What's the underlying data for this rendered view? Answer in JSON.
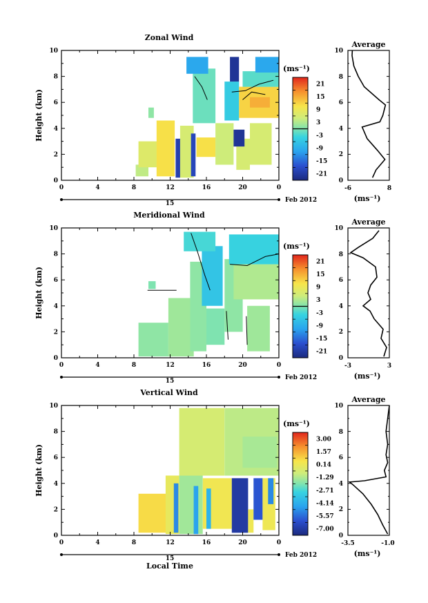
{
  "figure": {
    "date_label": "Feb 2012",
    "day_label": "15",
    "x_axis_title": "Local Time",
    "x_ticks": [
      "0",
      "4",
      "8",
      "12",
      "16",
      "20",
      "0"
    ],
    "y_ticks": [
      "0",
      "2",
      "4",
      "6",
      "8",
      "10"
    ],
    "y_axis_title": "Height (km)",
    "unit_label": "(ms⁻¹)",
    "avg_title": "Average"
  },
  "chart_data": [
    {
      "type": "heatmap",
      "title": "Zonal Wind",
      "xlabel": "",
      "ylabel": "Height (km)",
      "xlim": [
        0,
        24
      ],
      "ylim": [
        0,
        10
      ],
      "colorbar": {
        "labels": [
          "21",
          "15",
          "9",
          "3",
          "-3",
          "-9",
          "-15",
          "-21"
        ],
        "range": [
          -24,
          24
        ]
      },
      "regions": [
        {
          "x": [
            8.2,
            9.6
          ],
          "y": [
            0.3,
            1.2
          ],
          "v": 4
        },
        {
          "x": [
            8.5,
            11.5
          ],
          "y": [
            1.0,
            3.0
          ],
          "v": 7
        },
        {
          "x": [
            9.6,
            10.2
          ],
          "y": [
            4.8,
            5.6
          ],
          "v": 1
        },
        {
          "x": [
            10.5,
            12.5
          ],
          "y": [
            0.3,
            4.6
          ],
          "v": 11
        },
        {
          "x": [
            12.6,
            13.1
          ],
          "y": [
            0.2,
            3.2
          ],
          "v": -20
        },
        {
          "x": [
            13.1,
            14.6
          ],
          "y": [
            0.2,
            4.2
          ],
          "v": 6
        },
        {
          "x": [
            14.3,
            14.8
          ],
          "y": [
            0.3,
            3.6
          ],
          "v": -19
        },
        {
          "x": [
            14.9,
            17.0
          ],
          "y": [
            1.8,
            3.3
          ],
          "v": 11
        },
        {
          "x": [
            17.0,
            19.0
          ],
          "y": [
            1.2,
            4.4
          ],
          "v": 5
        },
        {
          "x": [
            19.3,
            20.8
          ],
          "y": [
            0.8,
            3.2
          ],
          "v": 6
        },
        {
          "x": [
            19.0,
            20.2
          ],
          "y": [
            2.6,
            3.9
          ],
          "v": -22
        },
        {
          "x": [
            20.8,
            23.2
          ],
          "y": [
            1.2,
            4.4
          ],
          "v": 6
        },
        {
          "x": [
            14.5,
            17.0
          ],
          "y": [
            4.4,
            8.6
          ],
          "v": -1
        },
        {
          "x": [
            13.8,
            16.2
          ],
          "y": [
            8.2,
            9.5
          ],
          "v": -10
        },
        {
          "x": [
            18.0,
            19.6
          ],
          "y": [
            4.6,
            7.6
          ],
          "v": -5
        },
        {
          "x": [
            19.6,
            24.0
          ],
          "y": [
            4.8,
            7.2
          ],
          "v": 12
        },
        {
          "x": [
            20.8,
            23.0
          ],
          "y": [
            5.6,
            6.4
          ],
          "v": 15
        },
        {
          "x": [
            18.6,
            19.6
          ],
          "y": [
            7.6,
            9.5
          ],
          "v": -22
        },
        {
          "x": [
            20.0,
            24.0
          ],
          "y": [
            7.2,
            8.4
          ],
          "v": -2
        },
        {
          "x": [
            21.4,
            24.0
          ],
          "y": [
            8.3,
            9.5
          ],
          "v": -10
        }
      ],
      "contours": [
        [
          [
            14.7,
            8.0
          ],
          [
            15.5,
            7.2
          ],
          [
            16.1,
            6.2
          ]
        ],
        [
          [
            18.8,
            6.8
          ],
          [
            20.3,
            6.9
          ],
          [
            21.8,
            7.4
          ],
          [
            23.4,
            7.7
          ]
        ],
        [
          [
            20.0,
            6.2
          ],
          [
            21.0,
            6.8
          ],
          [
            22.5,
            6.6
          ]
        ]
      ],
      "average_profile": {
        "xlim": [
          -6,
          8
        ],
        "x_ticks": [
          "-6",
          "8"
        ],
        "points": [
          [
            2.3,
            0.2
          ],
          [
            3.5,
            0.8
          ],
          [
            6.5,
            1.6
          ],
          [
            4.0,
            2.3
          ],
          [
            0.5,
            3.2
          ],
          [
            -1.2,
            4.1
          ],
          [
            4.8,
            4.5
          ],
          [
            5.8,
            5.0
          ],
          [
            6.7,
            5.8
          ],
          [
            4.5,
            6.2
          ],
          [
            -0.5,
            7.2
          ],
          [
            -2.5,
            8.0
          ],
          [
            -4.0,
            8.8
          ],
          [
            -4.6,
            9.6
          ],
          [
            -4.5,
            10.0
          ]
        ]
      }
    },
    {
      "type": "heatmap",
      "title": "Meridional Wind",
      "xlabel": "",
      "ylabel": "Height (km)",
      "xlim": [
        0,
        24
      ],
      "ylim": [
        0,
        10
      ],
      "colorbar": {
        "labels": [
          "21",
          "15",
          "9",
          "3",
          "-3",
          "-9",
          "-15",
          "-21"
        ],
        "range": [
          -24,
          24
        ]
      },
      "regions": [
        {
          "x": [
            8.5,
            11.8
          ],
          "y": [
            0.1,
            2.7
          ],
          "v": 1
        },
        {
          "x": [
            9.6,
            10.4
          ],
          "y": [
            5.3,
            5.9
          ],
          "v": 0
        },
        {
          "x": [
            11.8,
            14.6
          ],
          "y": [
            0.1,
            4.6
          ],
          "v": 2
        },
        {
          "x": [
            14.2,
            16.0
          ],
          "y": [
            0.5,
            7.4
          ],
          "v": 1
        },
        {
          "x": [
            16.0,
            18.0
          ],
          "y": [
            1.0,
            3.8
          ],
          "v": 0
        },
        {
          "x": [
            15.5,
            17.8
          ],
          "y": [
            4.0,
            8.6
          ],
          "v": -6
        },
        {
          "x": [
            18.0,
            20.0
          ],
          "y": [
            2.0,
            7.6
          ],
          "v": 1
        },
        {
          "x": [
            19.0,
            24.0
          ],
          "y": [
            4.5,
            7.2
          ],
          "v": 3
        },
        {
          "x": [
            20.5,
            23.0
          ],
          "y": [
            0.5,
            4.0
          ],
          "v": 2
        },
        {
          "x": [
            18.5,
            24.0
          ],
          "y": [
            7.2,
            9.5
          ],
          "v": -4
        },
        {
          "x": [
            13.5,
            17.0
          ],
          "y": [
            8.2,
            9.7
          ],
          "v": -3
        }
      ],
      "contours": [
        [
          [
            9.5,
            5.2
          ],
          [
            12.7,
            5.2
          ]
        ],
        [
          [
            14.3,
            9.6
          ],
          [
            15.0,
            8.2
          ],
          [
            15.8,
            6.4
          ],
          [
            16.4,
            5.2
          ]
        ],
        [
          [
            18.6,
            7.2
          ],
          [
            20.5,
            7.1
          ],
          [
            22.5,
            7.8
          ],
          [
            24.0,
            8.0
          ]
        ],
        [
          [
            18.2,
            3.6
          ],
          [
            18.4,
            1.4
          ]
        ],
        [
          [
            20.4,
            3.2
          ],
          [
            20.5,
            1.0
          ]
        ]
      ],
      "average_profile": {
        "xlim": [
          -3,
          3
        ],
        "x_ticks": [
          "-3",
          "3"
        ],
        "points": [
          [
            2.2,
            0.1
          ],
          [
            2.6,
            0.8
          ],
          [
            1.8,
            1.5
          ],
          [
            2.1,
            2.2
          ],
          [
            0.8,
            3.0
          ],
          [
            0.2,
            3.6
          ],
          [
            -0.8,
            4.0
          ],
          [
            0.3,
            4.5
          ],
          [
            -0.1,
            5.0
          ],
          [
            0.3,
            5.6
          ],
          [
            1.2,
            6.2
          ],
          [
            1.0,
            7.0
          ],
          [
            -0.8,
            7.7
          ],
          [
            -2.6,
            8.1
          ],
          [
            -1.5,
            8.5
          ],
          [
            0.6,
            9.2
          ],
          [
            1.5,
            9.8
          ]
        ]
      }
    },
    {
      "type": "heatmap",
      "title": "Vertical Wind",
      "xlabel": "Local Time",
      "ylabel": "Height (km)",
      "xlim": [
        0,
        24
      ],
      "ylim": [
        0,
        10
      ],
      "colorbar": {
        "labels": [
          "3.00",
          "1.57",
          "0.14",
          "-1.29",
          "-2.71",
          "-4.14",
          "-5.57",
          "-7.00"
        ],
        "range": [
          -7.7,
          3.7
        ]
      },
      "regions": [
        {
          "x": [
            8.5,
            11.5
          ],
          "y": [
            0.2,
            3.2
          ],
          "v": 0.7
        },
        {
          "x": [
            11.5,
            13.0
          ],
          "y": [
            0.1,
            4.6
          ],
          "v": 0.0
        },
        {
          "x": [
            12.4,
            12.9
          ],
          "y": [
            0.2,
            4.0
          ],
          "v": -5.0
        },
        {
          "x": [
            13.0,
            15.6
          ],
          "y": [
            0.1,
            4.6
          ],
          "v": -1.5
        },
        {
          "x": [
            14.6,
            15.1
          ],
          "y": [
            0.1,
            3.8
          ],
          "v": -4.5
        },
        {
          "x": [
            15.6,
            18.8
          ],
          "y": [
            0.5,
            4.4
          ],
          "v": 0.3
        },
        {
          "x": [
            16.0,
            16.5
          ],
          "y": [
            0.5,
            3.6
          ],
          "v": -4.0
        },
        {
          "x": [
            18.8,
            20.6
          ],
          "y": [
            0.2,
            4.4
          ],
          "v": -7.0
        },
        {
          "x": [
            20.6,
            21.2
          ],
          "y": [
            0.2,
            2.0
          ],
          "v": 0.2
        },
        {
          "x": [
            21.2,
            22.2
          ],
          "y": [
            1.2,
            4.4
          ],
          "v": -6.0
        },
        {
          "x": [
            22.2,
            23.6
          ],
          "y": [
            0.4,
            4.4
          ],
          "v": 0.2
        },
        {
          "x": [
            22.8,
            23.4
          ],
          "y": [
            2.4,
            4.4
          ],
          "v": -5.0
        },
        {
          "x": [
            13.0,
            18.0
          ],
          "y": [
            4.6,
            9.8
          ],
          "v": -0.6
        },
        {
          "x": [
            18.0,
            24.0
          ],
          "y": [
            4.6,
            9.8
          ],
          "v": -1.1
        },
        {
          "x": [
            20.0,
            23.8
          ],
          "y": [
            5.2,
            7.6
          ],
          "v": -1.4
        }
      ],
      "contours": [],
      "average_profile": {
        "xlim": [
          -3.5,
          -1.0
        ],
        "x_ticks": [
          "-3.5",
          "-1.0"
        ],
        "points": [
          [
            -1.1,
            0.1
          ],
          [
            -1.4,
            0.8
          ],
          [
            -1.7,
            1.6
          ],
          [
            -2.1,
            2.4
          ],
          [
            -2.6,
            3.2
          ],
          [
            -3.2,
            3.9
          ],
          [
            -3.4,
            4.1
          ],
          [
            -2.5,
            4.2
          ],
          [
            -1.2,
            4.5
          ],
          [
            -1.3,
            5.0
          ],
          [
            -1.1,
            5.6
          ],
          [
            -1.2,
            6.2
          ],
          [
            -1.1,
            7.0
          ],
          [
            -1.2,
            8.0
          ],
          [
            -1.1,
            9.0
          ],
          [
            -1.0,
            10.0
          ]
        ]
      }
    }
  ]
}
